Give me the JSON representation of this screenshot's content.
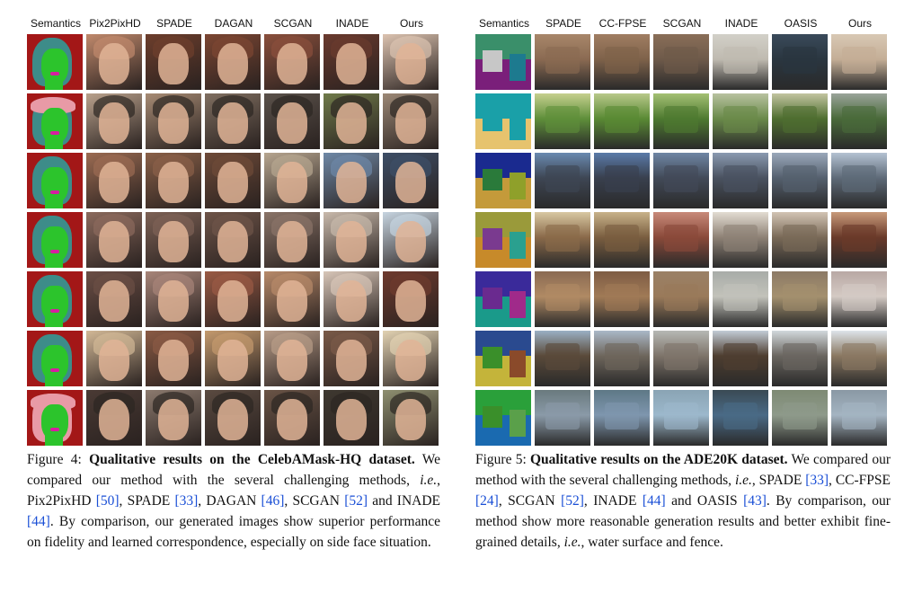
{
  "figure4": {
    "headers": [
      "Semantics",
      "Pix2PixHD",
      "SPADE",
      "DAGAN",
      "SCGAN",
      "INADE",
      "Ours"
    ],
    "rows": [
      {
        "hat": false,
        "hair": "#3d8c89",
        "tones": [
          "#c0896c",
          "#6d3e2c",
          "#7c4632",
          "#8a4f3c",
          "#6a3a2e",
          "#dcc3b0"
        ]
      },
      {
        "hat": true,
        "hair": "#3d8c89",
        "tones": [
          "#b9a18c",
          "#a78b74",
          "#7f6e60",
          "#5a514a",
          "#6f7a4a",
          "#9c8876"
        ]
      },
      {
        "hat": false,
        "hair": "#3d8c89",
        "tones": [
          "#9b6b52",
          "#8a6048",
          "#6e4a38",
          "#b7a690",
          "#6e88a6",
          "#3d4e66"
        ]
      },
      {
        "hat": false,
        "hair": "#3d8c89",
        "tones": [
          "#8b6a5d",
          "#7d6155",
          "#6e5448",
          "#8a7468",
          "#c8b9ab",
          "#c6d4e0"
        ]
      },
      {
        "hat": false,
        "hair": "#3d8c89",
        "tones": [
          "#6b4e45",
          "#a88579",
          "#9a5a44",
          "#b88a6a",
          "#d8c6b8",
          "#6e3a2e"
        ]
      },
      {
        "hat": false,
        "hair": "#3d8c89",
        "tones": [
          "#d2b896",
          "#8a5a44",
          "#c49a6e",
          "#b89c88",
          "#7a5a48",
          "#e2d2b2"
        ]
      },
      {
        "hat": true,
        "hair": "#e89aa6",
        "tones": [
          "#4a3a34",
          "#8c7a6e",
          "#5a4a40",
          "#6a5446",
          "#3e3830",
          "#8e8f70"
        ]
      }
    ]
  },
  "figure5": {
    "headers": [
      "Semantics",
      "SPADE",
      "CC-FPSE",
      "SCGAN",
      "INADE",
      "OASIS",
      "Ours"
    ],
    "rows": [
      {
        "sem": [
          "#3a8f6a",
          "#7a1f7a",
          "#c7c7c7",
          "#1d7a8f"
        ],
        "sky": [
          "#a8876a",
          "#a07e62",
          "#8a6e58",
          "#d2d0c8",
          "#3a4a5a",
          "#d8c8b4"
        ],
        "ground": [
          "#8a6a52",
          "#7e624a",
          "#6e5a4a",
          "#bfbab0",
          "#2a3640",
          "#c4ae96"
        ]
      },
      {
        "sem": [
          "#1aa0a8",
          "#e6c36e",
          "#1aa0a8",
          "#1aa0a8"
        ],
        "sky": [
          "#c6d08e",
          "#b8c88a",
          "#a4c074",
          "#b8c2a0",
          "#c2c4a0",
          "#9aa49a"
        ],
        "ground": [
          "#5f8f3a",
          "#5a8a34",
          "#4e7a30",
          "#6a8a4a",
          "#4f6e30",
          "#4a6a3a"
        ]
      },
      {
        "sem": [
          "#1a2a8f",
          "#c49a3a",
          "#2a7a3a",
          "#8fa02a"
        ],
        "sky": [
          "#6a8ab0",
          "#5a7aa8",
          "#6f86a4",
          "#8a9ab0",
          "#9aa8ba",
          "#b4c2d2"
        ],
        "ground": [
          "#3e4654",
          "#39404e",
          "#424a58",
          "#4a5260",
          "#55606e",
          "#5e6a78"
        ]
      },
      {
        "sem": [
          "#9a9a3a",
          "#c78a2a",
          "#7a3a8f",
          "#2aa08f"
        ],
        "sky": [
          "#d8c8a2",
          "#c8b28a",
          "#c88a7a",
          "#e2dcd2",
          "#d2c4b4",
          "#c89a7a"
        ],
        "ground": [
          "#8a6a4a",
          "#7a5e40",
          "#8a4a3a",
          "#8e8276",
          "#7a6a58",
          "#6a3a2a"
        ]
      },
      {
        "sem": [
          "#3a2a9a",
          "#1a9a8a",
          "#6a2a8f",
          "#a02a8a"
        ],
        "sky": [
          "#8a6a52",
          "#7e5c44",
          "#9a8066",
          "#a8aca8",
          "#8c7a66",
          "#b8a8a4"
        ],
        "ground": [
          "#b08a64",
          "#a07a56",
          "#9a7a5a",
          "#c2c2ba",
          "#a4906e",
          "#d4cac4"
        ]
      },
      {
        "sem": [
          "#2a4a8f",
          "#c4b43a",
          "#3a8f2a",
          "#8a4a2a"
        ],
        "sky": [
          "#9ab0c4",
          "#aab8c8",
          "#b6b8b4",
          "#c2ccd6",
          "#d2d8dc",
          "#dde4ea"
        ],
        "ground": [
          "#5a4a3a",
          "#6e665c",
          "#7e746a",
          "#4e3e30",
          "#6a6660",
          "#8a7862"
        ]
      },
      {
        "sem": [
          "#2aa03a",
          "#1a6ab0",
          "#3a8f2a",
          "#5aa04a"
        ],
        "sky": [
          "#6a7a7e",
          "#5e7886",
          "#8aa4b4",
          "#3a4a54",
          "#7e8a74",
          "#8a98a4"
        ],
        "ground": [
          "#8a9aa8",
          "#7e96ae",
          "#9cb8cc",
          "#4a6a86",
          "#8e9a8a",
          "#a4b4c2"
        ]
      }
    ]
  },
  "captions": {
    "fig4": {
      "label": "Figure 4:",
      "bold": "Qualitative results on the CelebAMask-HQ dataset.",
      "t1": " We compared our method with the several challenging methods, ",
      "ie": "i.e.",
      "t2": ", Pix2PixHD ",
      "r1": "[50]",
      "t3": ", SPADE ",
      "r2": "[33]",
      "t4": ", DAGAN ",
      "r3": "[46]",
      "t5": ", SCGAN ",
      "r4": "[52]",
      "t6": " and INADE ",
      "r5": "[44]",
      "t7": ". By comparison, our generated images show superior performance on fidelity and learned correspondence, especially on side face situation."
    },
    "fig5": {
      "label": "Figure 5:",
      "bold": "Qualitative results on the ADE20K dataset.",
      "t1": " We compared our method with the several challenging methods, ",
      "ie": "i.e.",
      "t2": ", SPADE ",
      "r1": "[33]",
      "t3": ", CC-FPSE ",
      "r2": "[24]",
      "t4": ", SCGAN ",
      "r3": "[52]",
      "t5": ", INADE ",
      "r4": "[44]",
      "t6": " and OASIS ",
      "r5": "[43]",
      "t7": ". By comparison, our method show more reasonable generation results and better exhibit fine-grained details, ",
      "ie2": "i.e.",
      "t8": ", water surface and fence."
    }
  }
}
